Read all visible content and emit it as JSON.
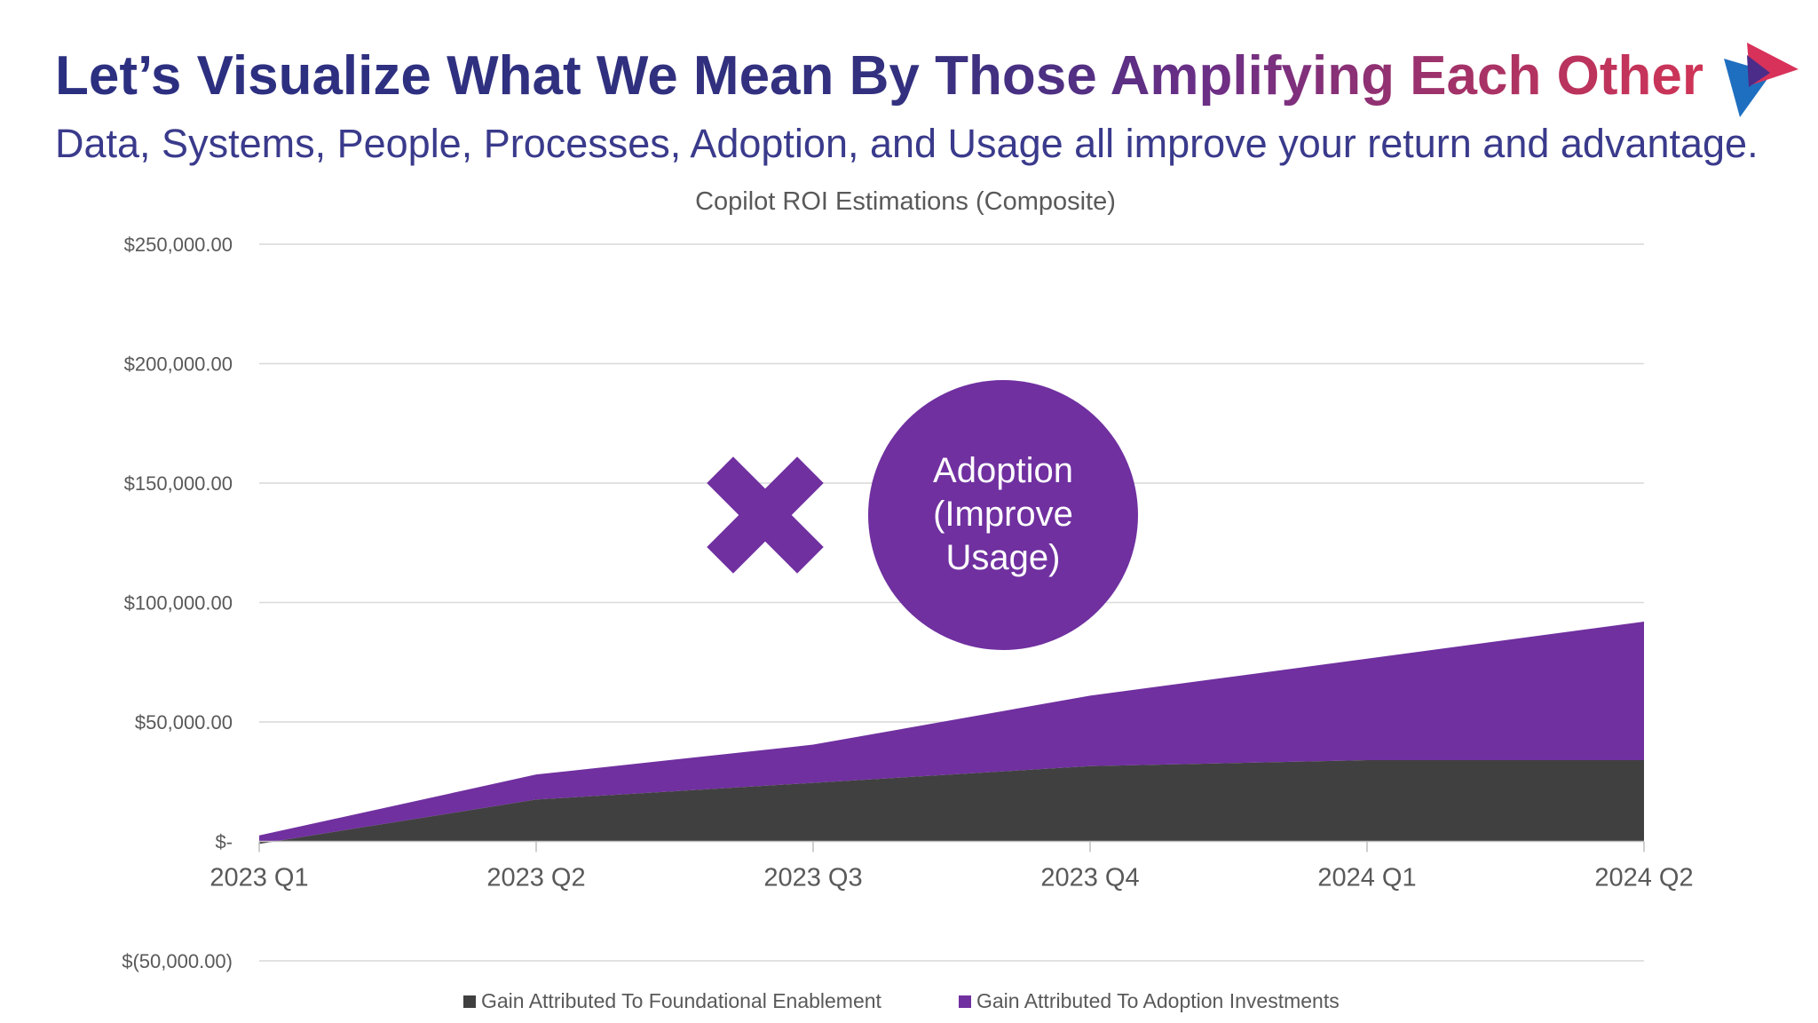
{
  "slide": {
    "title": "Let’s Visualize What We Mean By Those Amplifying Each Other",
    "subtitle": "Data, Systems, People, Processes, Adoption, and Usage all improve your return and advantage."
  },
  "colors": {
    "foundational": "#404040",
    "adoption": "#7030a0",
    "grid": "#d9d9d9",
    "axis_text": "#595959"
  },
  "callout": {
    "lines": [
      "Adoption",
      "(Improve",
      "Usage)"
    ],
    "operator_icon": "multiply-icon"
  },
  "logo_icon": "play-triangle-logo-icon",
  "chart_data": {
    "type": "area",
    "stacked": true,
    "title": "Copilot ROI Estimations (Composite)",
    "categories": [
      "2023 Q1",
      "2023 Q2",
      "2023 Q3",
      "2023 Q4",
      "2024 Q1",
      "2024 Q2"
    ],
    "series": [
      {
        "name": "Gain Attributed To Foundational Enablement",
        "values": [
          -1000,
          17500,
          24500,
          31500,
          34000,
          34000
        ]
      },
      {
        "name": "Gain Attributed To Adoption Investments",
        "values": [
          3500,
          10500,
          16000,
          29500,
          42500,
          58000
        ]
      }
    ],
    "ylim": [
      -50000,
      250000
    ],
    "yticks": [
      250000,
      200000,
      150000,
      100000,
      50000,
      0,
      -50000
    ],
    "ytick_labels": [
      "$250,000.00",
      "$200,000.00",
      "$150,000.00",
      "$100,000.00",
      "$50,000.00",
      "$-",
      "$(50,000.00)"
    ],
    "grid": true,
    "legend": "bottom"
  }
}
